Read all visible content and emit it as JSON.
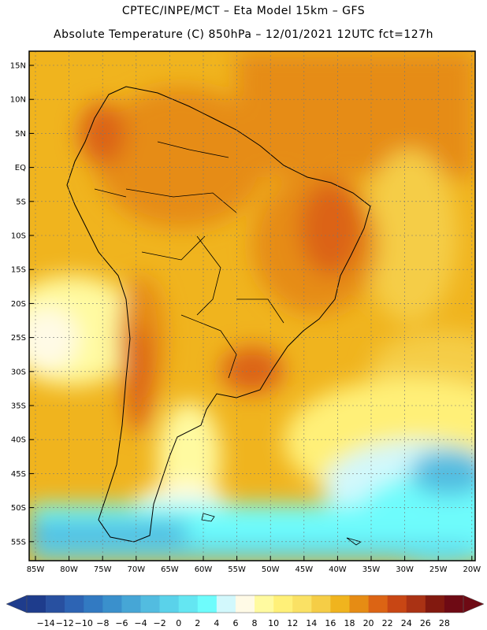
{
  "header": {
    "line1": "CPTEC/INPE/MCT  –   Eta Model 15km  –  GFS",
    "line2": "Absolute Temperature (C) 850hPa  –  12/01/2021  12UTC  fct=127h"
  },
  "map": {
    "lat_labels": [
      "15N",
      "10N",
      "5N",
      "EQ",
      "5S",
      "10S",
      "15S",
      "20S",
      "25S",
      "30S",
      "35S",
      "40S",
      "45S",
      "50S",
      "55S"
    ],
    "lon_labels": [
      "85W",
      "80W",
      "75W",
      "70W",
      "65W",
      "60W",
      "55W",
      "50W",
      "45W",
      "40W",
      "35W",
      "30W",
      "25W",
      "20W"
    ]
  },
  "colorbar": {
    "labels": [
      "-14",
      "-12",
      "-10",
      "-8",
      "-6",
      "-4",
      "-2",
      "0",
      "2",
      "4",
      "6",
      "8",
      "10",
      "12",
      "14",
      "16",
      "18",
      "20",
      "22",
      "24",
      "26",
      "28"
    ],
    "colors": [
      "#1e3c8c",
      "#2850a0",
      "#2d64b4",
      "#327ac2",
      "#3a90cc",
      "#46a6d6",
      "#52bce0",
      "#5ad2ea",
      "#64e6f2",
      "#6efcfc",
      "#d2f8fc",
      "#fffae6",
      "#fffaa0",
      "#fff078",
      "#fae164",
      "#f5cd46",
      "#f0b41e",
      "#e68c14",
      "#dc6414",
      "#c84614",
      "#aa3214",
      "#82190f",
      "#6e0a14"
    ]
  }
}
